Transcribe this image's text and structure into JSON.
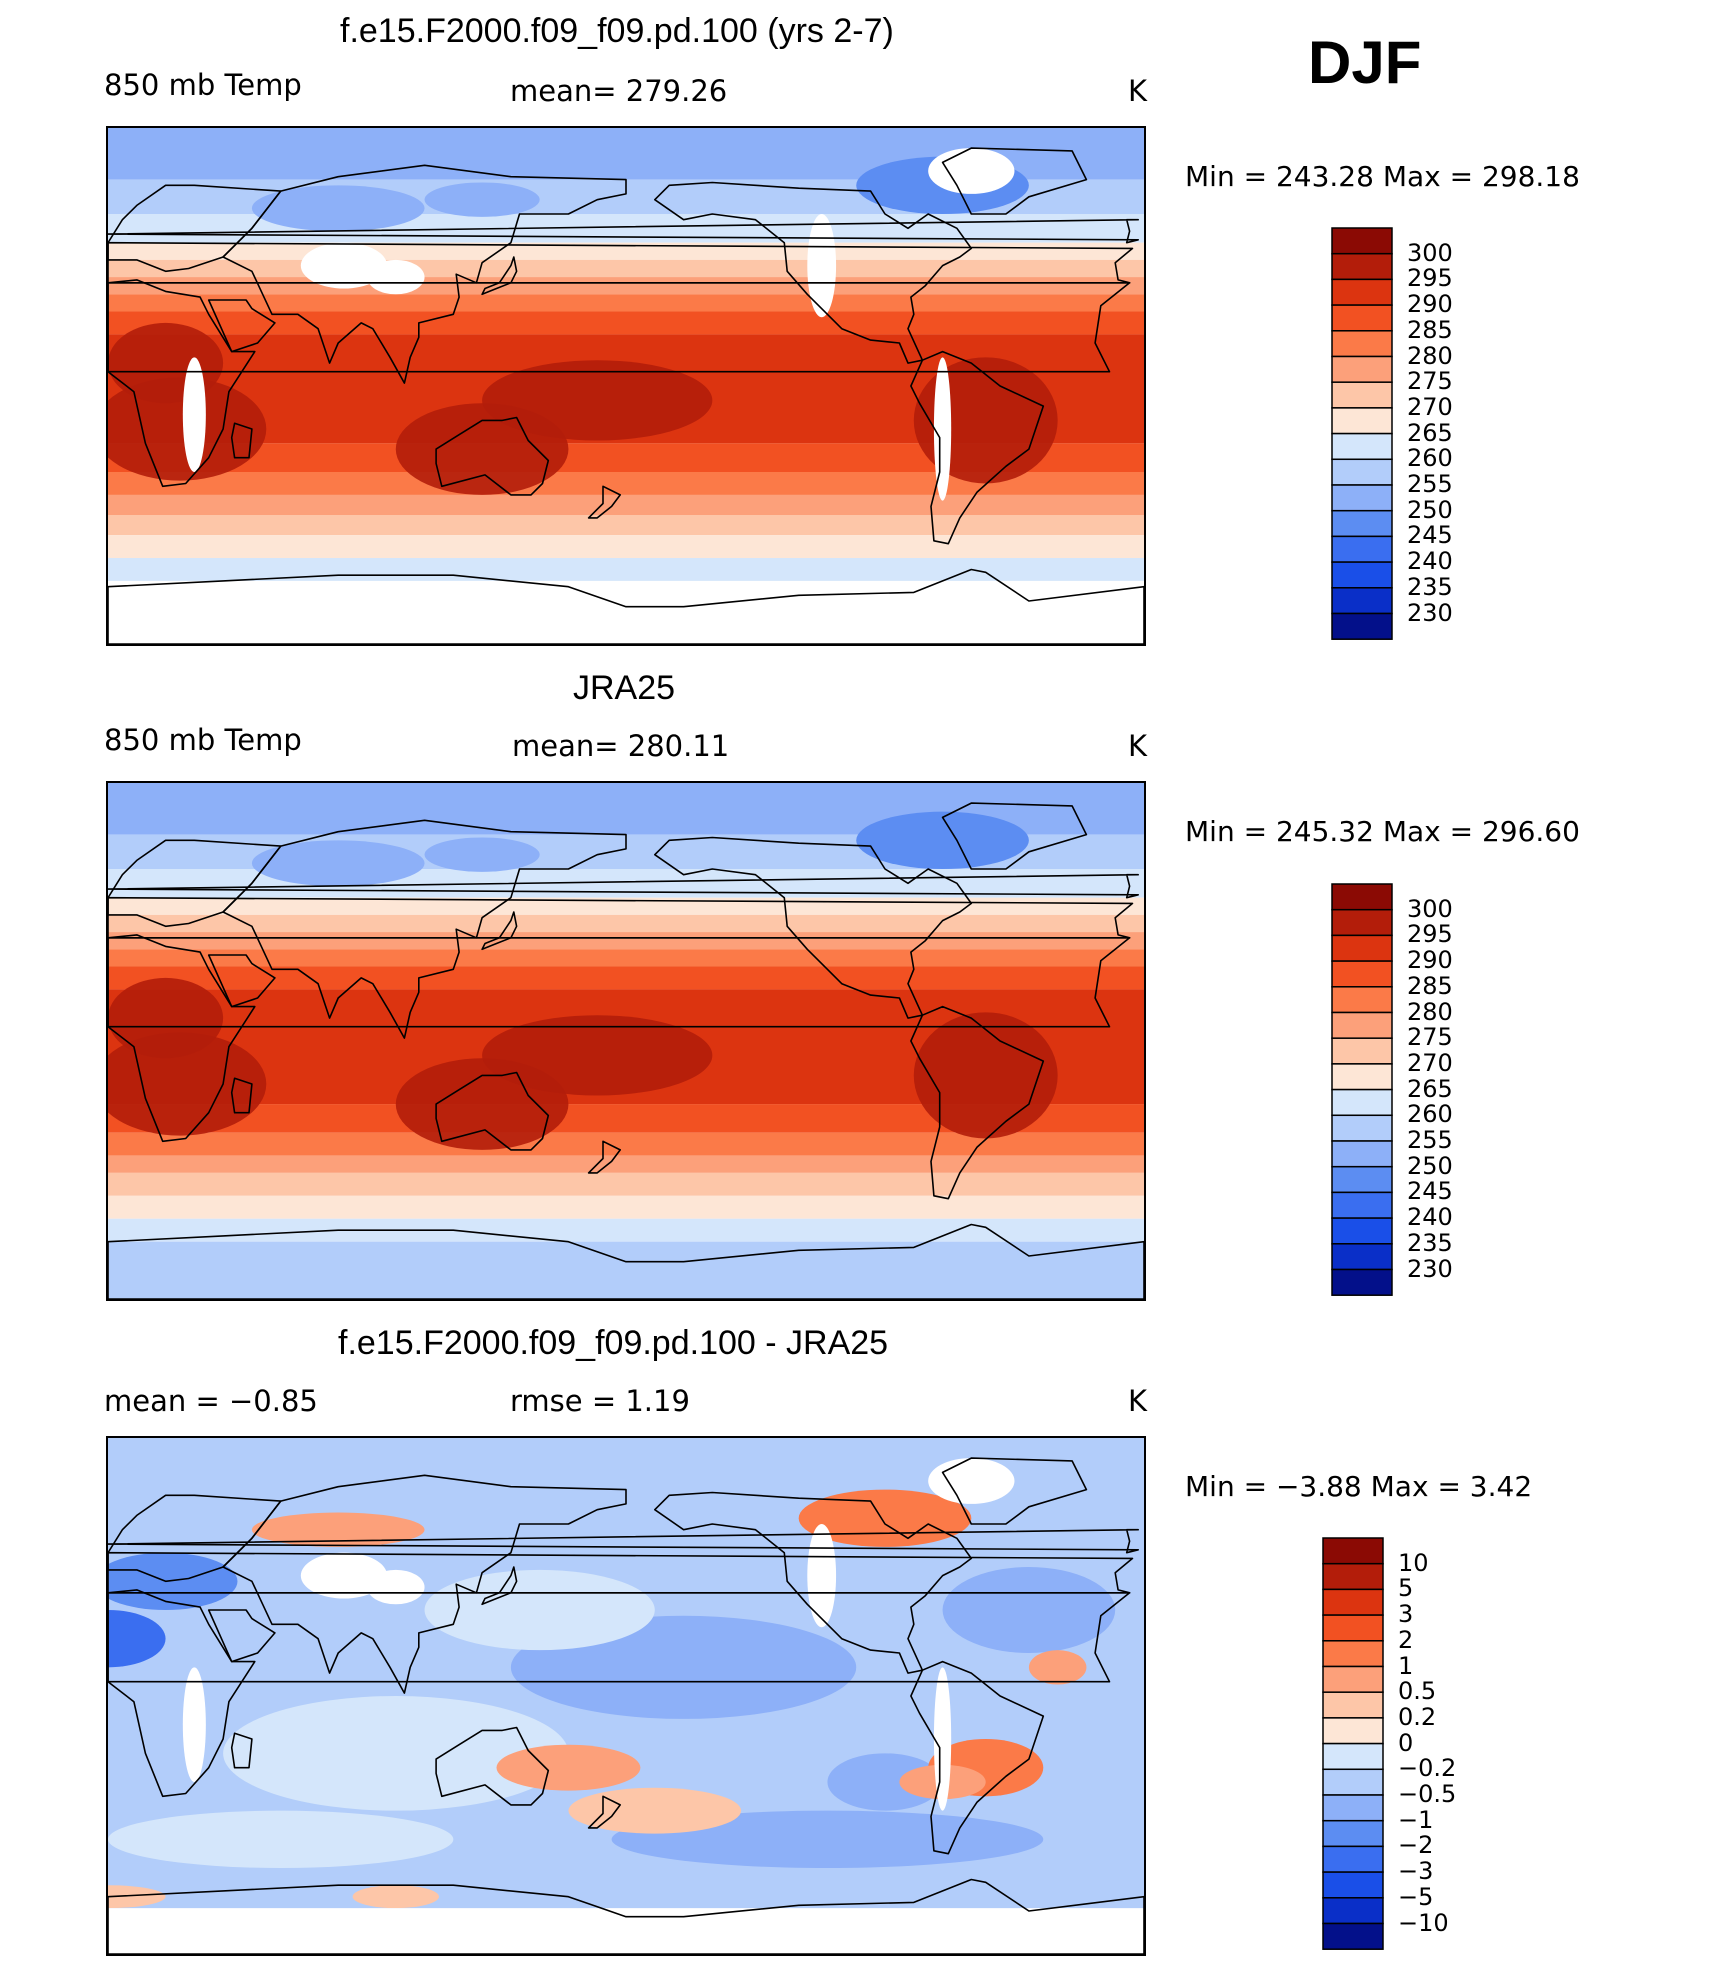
{
  "season": "DJF",
  "panels": [
    {
      "title": "f.e15.F2000.f09_f09.pd.100 (yrs 2-7)",
      "left_label": "850 mb Temp",
      "center_label": "mean=  279.26",
      "units": "K",
      "range_text": "Min  =  243.28  Max  =  298.18"
    },
    {
      "title": "JRA25",
      "left_label": "850 mb Temp",
      "center_label": "mean=  280.11",
      "units": "K",
      "range_text": "Min  =  245.32  Max  =  296.60"
    },
    {
      "title": "f.e15.F2000.f09_f09.pd.100 - JRA25",
      "left_label": "mean  =    −0.85",
      "center_label": "rmse  =     1.19",
      "units": "K",
      "range_text": "Min  =    −3.88  Max  =      3.42"
    }
  ],
  "chart_data": [
    {
      "type": "heatmap",
      "title": "f.e15.F2000.f09_f09.pd.100 (yrs 2-7)",
      "variable": "850 mb Temp",
      "units": "K",
      "mean": 279.26,
      "min": 243.28,
      "max": 298.18,
      "contour_levels": [
        "300",
        "295",
        "290",
        "285",
        "280",
        "275",
        "270",
        "265",
        "260",
        "255",
        "250",
        "245",
        "240",
        "235",
        "230"
      ],
      "colors": [
        "#8b0a04",
        "#b31d0a",
        "#dc3410",
        "#f25122",
        "#fb7a48",
        "#fca07a",
        "#fdc6a8",
        "#fde6d6",
        "#d4e6fb",
        "#b2cdfa",
        "#8db0f8",
        "#5c8df2",
        "#3a6ef0",
        "#1a4fe8",
        "#0a2fc8",
        "#03108a"
      ]
    },
    {
      "type": "heatmap",
      "title": "JRA25",
      "variable": "850 mb Temp",
      "units": "K",
      "mean": 280.11,
      "min": 245.32,
      "max": 296.6,
      "contour_levels": [
        "300",
        "295",
        "290",
        "285",
        "280",
        "275",
        "270",
        "265",
        "260",
        "255",
        "250",
        "245",
        "240",
        "235",
        "230"
      ],
      "colors": [
        "#8b0a04",
        "#b31d0a",
        "#dc3410",
        "#f25122",
        "#fb7a48",
        "#fca07a",
        "#fdc6a8",
        "#fde6d6",
        "#d4e6fb",
        "#b2cdfa",
        "#8db0f8",
        "#5c8df2",
        "#3a6ef0",
        "#1a4fe8",
        "#0a2fc8",
        "#03108a"
      ]
    },
    {
      "type": "heatmap",
      "title": "f.e15.F2000.f09_f09.pd.100 - JRA25",
      "units": "K",
      "mean": -0.85,
      "rmse": 1.19,
      "min": -3.88,
      "max": 3.42,
      "contour_levels": [
        "10",
        "5",
        "3",
        "2",
        "1",
        "0.5",
        "0.2",
        "0",
        "−0.2",
        "−0.5",
        "−1",
        "−2",
        "−3",
        "−5",
        "−10"
      ],
      "colors": [
        "#8b0a04",
        "#b31d0a",
        "#dc3410",
        "#f25122",
        "#fb7a48",
        "#fca07a",
        "#fdc6a8",
        "#fde6d6",
        "#d4e6fb",
        "#b2cdfa",
        "#8db0f8",
        "#5c8df2",
        "#3a6ef0",
        "#1a4fe8",
        "#0a2fc8",
        "#03108a"
      ]
    }
  ]
}
